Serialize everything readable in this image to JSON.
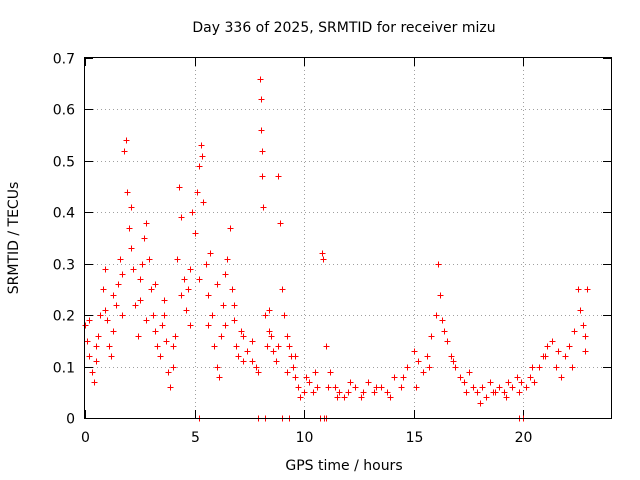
{
  "chart_data": {
    "type": "scatter",
    "title": "Day 336 of 2025, SRMTID for receiver mizu",
    "xlabel": "GPS time / hours",
    "ylabel": "SRMTID / TECUs",
    "xlim": [
      0,
      24
    ],
    "ylim": [
      0,
      0.7
    ],
    "x_ticks": [
      0,
      5,
      10,
      15,
      20
    ],
    "y_ticks": [
      0,
      0.1,
      0.2,
      0.3,
      0.4,
      0.5,
      0.6,
      0.7
    ],
    "x_tick_labels": [
      "0",
      "5",
      "10",
      "15",
      "20"
    ],
    "y_tick_labels": [
      "0",
      "0.1",
      "0.2",
      "0.3",
      "0.4",
      "0.5",
      "0.6",
      "0.7"
    ],
    "grid": true,
    "marker": "plus",
    "color": "#ff0000",
    "series": [
      {
        "name": "SRMTID",
        "points": [
          [
            0.0,
            0.18
          ],
          [
            0.1,
            0.15
          ],
          [
            0.2,
            0.12
          ],
          [
            0.3,
            0.09
          ],
          [
            0.4,
            0.07
          ],
          [
            0.5,
            0.11
          ],
          [
            0.6,
            0.16
          ],
          [
            0.7,
            0.2
          ],
          [
            0.8,
            0.25
          ],
          [
            0.9,
            0.29
          ],
          [
            1.0,
            0.19
          ],
          [
            1.1,
            0.14
          ],
          [
            1.2,
            0.12
          ],
          [
            1.3,
            0.17
          ],
          [
            1.4,
            0.22
          ],
          [
            1.5,
            0.26
          ],
          [
            1.6,
            0.31
          ],
          [
            1.7,
            0.28
          ],
          [
            1.8,
            0.52
          ],
          [
            1.85,
            0.54
          ],
          [
            1.9,
            0.44
          ],
          [
            2.0,
            0.37
          ],
          [
            2.1,
            0.41
          ],
          [
            2.2,
            0.29
          ],
          [
            2.3,
            0.22
          ],
          [
            2.4,
            0.16
          ],
          [
            2.5,
            0.23
          ],
          [
            2.6,
            0.3
          ],
          [
            2.7,
            0.35
          ],
          [
            2.8,
            0.38
          ],
          [
            2.9,
            0.31
          ],
          [
            3.0,
            0.25
          ],
          [
            3.1,
            0.2
          ],
          [
            3.2,
            0.17
          ],
          [
            3.3,
            0.14
          ],
          [
            3.4,
            0.12
          ],
          [
            3.5,
            0.18
          ],
          [
            3.6,
            0.23
          ],
          [
            3.7,
            0.15
          ],
          [
            3.8,
            0.09
          ],
          [
            3.9,
            0.06
          ],
          [
            4.0,
            0.1
          ],
          [
            4.1,
            0.16
          ],
          [
            4.2,
            0.31
          ],
          [
            4.3,
            0.45
          ],
          [
            4.4,
            0.39
          ],
          [
            4.5,
            0.27
          ],
          [
            4.6,
            0.21
          ],
          [
            4.7,
            0.25
          ],
          [
            4.8,
            0.18
          ],
          [
            4.9,
            0.4
          ],
          [
            5.0,
            0.36
          ],
          [
            5.1,
            0.44
          ],
          [
            5.2,
            0.49
          ],
          [
            5.3,
            0.53
          ],
          [
            5.35,
            0.51
          ],
          [
            5.4,
            0.42
          ],
          [
            5.5,
            0.3
          ],
          [
            5.6,
            0.24
          ],
          [
            5.7,
            0.32
          ],
          [
            5.8,
            0.2
          ],
          [
            5.9,
            0.14
          ],
          [
            6.0,
            0.1
          ],
          [
            6.1,
            0.08
          ],
          [
            6.2,
            0.16
          ],
          [
            6.3,
            0.22
          ],
          [
            6.4,
            0.28
          ],
          [
            6.5,
            0.31
          ],
          [
            6.6,
            0.37
          ],
          [
            6.7,
            0.25
          ],
          [
            6.8,
            0.19
          ],
          [
            6.9,
            0.14
          ],
          [
            7.0,
            0.12
          ],
          [
            7.1,
            0.17
          ],
          [
            7.2,
            0.11
          ],
          [
            7.4,
            0.13
          ],
          [
            7.6,
            0.15
          ],
          [
            7.8,
            0.1
          ],
          [
            7.9,
            0.09
          ],
          [
            8.0,
            0.66
          ],
          [
            8.02,
            0.62
          ],
          [
            8.04,
            0.56
          ],
          [
            8.06,
            0.52
          ],
          [
            8.08,
            0.47
          ],
          [
            8.1,
            0.41
          ],
          [
            8.2,
            0.2
          ],
          [
            8.3,
            0.14
          ],
          [
            8.4,
            0.21
          ],
          [
            8.5,
            0.16
          ],
          [
            8.6,
            0.13
          ],
          [
            8.7,
            0.11
          ],
          [
            8.8,
            0.47
          ],
          [
            8.9,
            0.38
          ],
          [
            9.0,
            0.25
          ],
          [
            9.1,
            0.2
          ],
          [
            9.2,
            0.16
          ],
          [
            9.3,
            0.14
          ],
          [
            9.4,
            0.12
          ],
          [
            9.5,
            0.1
          ],
          [
            9.6,
            0.08
          ],
          [
            9.7,
            0.06
          ],
          [
            9.8,
            0.04
          ],
          [
            10.0,
            0.05
          ],
          [
            10.2,
            0.07
          ],
          [
            10.4,
            0.05
          ],
          [
            10.6,
            0.06
          ],
          [
            10.8,
            0.32
          ],
          [
            10.85,
            0.31
          ],
          [
            11.0,
            0.14
          ],
          [
            11.2,
            0.09
          ],
          [
            11.4,
            0.06
          ],
          [
            11.6,
            0.05
          ],
          [
            11.8,
            0.04
          ],
          [
            12.0,
            0.05
          ],
          [
            12.3,
            0.06
          ],
          [
            12.6,
            0.04
          ],
          [
            12.9,
            0.07
          ],
          [
            13.2,
            0.05
          ],
          [
            13.5,
            0.06
          ],
          [
            13.8,
            0.05
          ],
          [
            14.1,
            0.08
          ],
          [
            14.4,
            0.06
          ],
          [
            14.7,
            0.1
          ],
          [
            15.0,
            0.13
          ],
          [
            15.2,
            0.11
          ],
          [
            15.4,
            0.09
          ],
          [
            15.6,
            0.12
          ],
          [
            15.8,
            0.16
          ],
          [
            16.0,
            0.2
          ],
          [
            16.1,
            0.3
          ],
          [
            16.2,
            0.24
          ],
          [
            16.3,
            0.19
          ],
          [
            16.5,
            0.15
          ],
          [
            16.7,
            0.12
          ],
          [
            16.9,
            0.1
          ],
          [
            17.1,
            0.08
          ],
          [
            17.3,
            0.07
          ],
          [
            17.5,
            0.09
          ],
          [
            17.7,
            0.06
          ],
          [
            17.9,
            0.05
          ],
          [
            18.1,
            0.06
          ],
          [
            18.3,
            0.04
          ],
          [
            18.5,
            0.07
          ],
          [
            18.7,
            0.05
          ],
          [
            18.9,
            0.06
          ],
          [
            19.1,
            0.05
          ],
          [
            19.3,
            0.07
          ],
          [
            19.5,
            0.06
          ],
          [
            19.7,
            0.08
          ],
          [
            19.9,
            0.07
          ],
          [
            20.1,
            0.06
          ],
          [
            20.3,
            0.08
          ],
          [
            20.5,
            0.07
          ],
          [
            20.7,
            0.1
          ],
          [
            20.9,
            0.12
          ],
          [
            21.1,
            0.14
          ],
          [
            21.3,
            0.15
          ],
          [
            21.5,
            0.1
          ],
          [
            21.7,
            0.08
          ],
          [
            21.9,
            0.12
          ],
          [
            22.1,
            0.14
          ],
          [
            22.3,
            0.17
          ],
          [
            22.5,
            0.25
          ],
          [
            22.6,
            0.21
          ],
          [
            22.7,
            0.18
          ],
          [
            22.8,
            0.16
          ],
          [
            22.9,
            0.25
          ],
          [
            0.2,
            0.19
          ],
          [
            0.5,
            0.14
          ],
          [
            0.9,
            0.21
          ],
          [
            1.3,
            0.24
          ],
          [
            1.7,
            0.2
          ],
          [
            2.1,
            0.33
          ],
          [
            2.5,
            0.27
          ],
          [
            2.8,
            0.19
          ],
          [
            3.2,
            0.26
          ],
          [
            3.6,
            0.2
          ],
          [
            4.0,
            0.14
          ],
          [
            4.4,
            0.24
          ],
          [
            4.8,
            0.29
          ],
          [
            5.2,
            0.27
          ],
          [
            5.6,
            0.18
          ],
          [
            6.0,
            0.26
          ],
          [
            6.4,
            0.18
          ],
          [
            6.8,
            0.22
          ],
          [
            7.2,
            0.16
          ],
          [
            7.6,
            0.11
          ],
          [
            8.4,
            0.17
          ],
          [
            8.8,
            0.14
          ],
          [
            9.2,
            0.09
          ],
          [
            9.6,
            0.12
          ],
          [
            10.1,
            0.08
          ],
          [
            10.5,
            0.09
          ],
          [
            11.1,
            0.06
          ],
          [
            11.5,
            0.04
          ],
          [
            12.1,
            0.07
          ],
          [
            12.7,
            0.05
          ],
          [
            13.3,
            0.06
          ],
          [
            13.9,
            0.04
          ],
          [
            14.5,
            0.08
          ],
          [
            15.1,
            0.06
          ],
          [
            15.7,
            0.1
          ],
          [
            16.4,
            0.17
          ],
          [
            16.8,
            0.11
          ],
          [
            17.4,
            0.05
          ],
          [
            18.0,
            0.03
          ],
          [
            18.6,
            0.05
          ],
          [
            19.2,
            0.04
          ],
          [
            19.8,
            0.05
          ],
          [
            20.4,
            0.1
          ],
          [
            21.0,
            0.12
          ],
          [
            21.6,
            0.13
          ],
          [
            22.2,
            0.1
          ],
          [
            22.8,
            0.13
          ],
          [
            5.2,
            0.0
          ],
          [
            7.9,
            0.0
          ],
          [
            8.2,
            0.0
          ],
          [
            9.0,
            0.0
          ],
          [
            9.3,
            0.0
          ],
          [
            10.7,
            0.0
          ],
          [
            10.9,
            0.0
          ],
          [
            11.0,
            0.0
          ],
          [
            19.8,
            0.0
          ],
          [
            20.0,
            0.0
          ]
        ]
      }
    ]
  }
}
